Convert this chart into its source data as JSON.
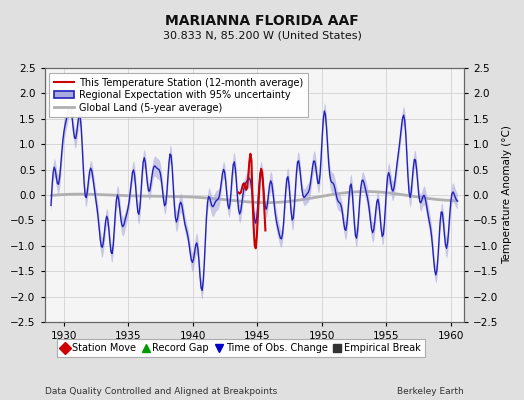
{
  "title": "MARIANNA FLORIDA AAF",
  "subtitle": "30.833 N, 85.200 W (United States)",
  "xlabel_left": "Data Quality Controlled and Aligned at Breakpoints",
  "xlabel_right": "Berkeley Earth",
  "ylabel_right": "Temperature Anomaly (°C)",
  "xmin": 1928.5,
  "xmax": 1961.0,
  "ymin": -2.5,
  "ymax": 2.5,
  "xticks": [
    1930,
    1935,
    1940,
    1945,
    1950,
    1955,
    1960
  ],
  "yticks": [
    -2.5,
    -2,
    -1.5,
    -1,
    -0.5,
    0,
    0.5,
    1,
    1.5,
    2,
    2.5
  ],
  "bg_color": "#e0e0e0",
  "plot_bg_color": "#f5f5f5",
  "regional_color": "#2222bb",
  "regional_fill_color": "#aaaadd",
  "station_color": "#cc0000",
  "global_color": "#b0b0b0",
  "legend_items": [
    {
      "label": "This Temperature Station (12-month average)",
      "color": "#cc0000",
      "lw": 1.5
    },
    {
      "label": "Regional Expectation with 95% uncertainty",
      "color": "#2222bb",
      "lw": 1.5
    },
    {
      "label": "Global Land (5-year average)",
      "color": "#b0b0b0",
      "lw": 2.5
    }
  ],
  "bottom_legend": [
    {
      "label": "Station Move",
      "color": "#cc0000",
      "marker": "D"
    },
    {
      "label": "Record Gap",
      "color": "#009900",
      "marker": "^"
    },
    {
      "label": "Time of Obs. Change",
      "color": "#0000cc",
      "marker": "v"
    },
    {
      "label": "Empirical Break",
      "color": "#333333",
      "marker": "s"
    }
  ]
}
